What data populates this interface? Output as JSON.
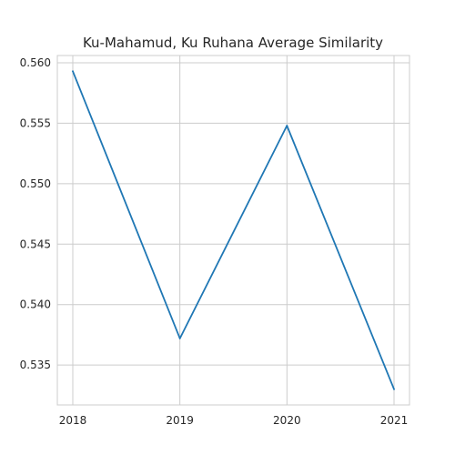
{
  "chart_data": {
    "type": "line",
    "title": "Ku-Mahamud, Ku Ruhana Average Similarity",
    "xlabel": "",
    "ylabel": "",
    "x": [
      2018,
      2019,
      2020,
      2021
    ],
    "x_tick_labels": [
      "2018",
      "2019",
      "2020",
      "2021"
    ],
    "series": [
      {
        "values": [
          0.5593,
          0.5372,
          0.5548,
          0.533
        ],
        "color": "#1f77b4"
      }
    ],
    "ylim": [
      0.5317,
      0.5606
    ],
    "y_ticks": [
      0.535,
      0.54,
      0.545,
      0.55,
      0.555,
      0.56
    ],
    "y_tick_labels": [
      "0.535",
      "0.540",
      "0.545",
      "0.550",
      "0.555",
      "0.560"
    ],
    "grid": true,
    "grid_color": "#cccccc",
    "background": "#ffffff"
  }
}
